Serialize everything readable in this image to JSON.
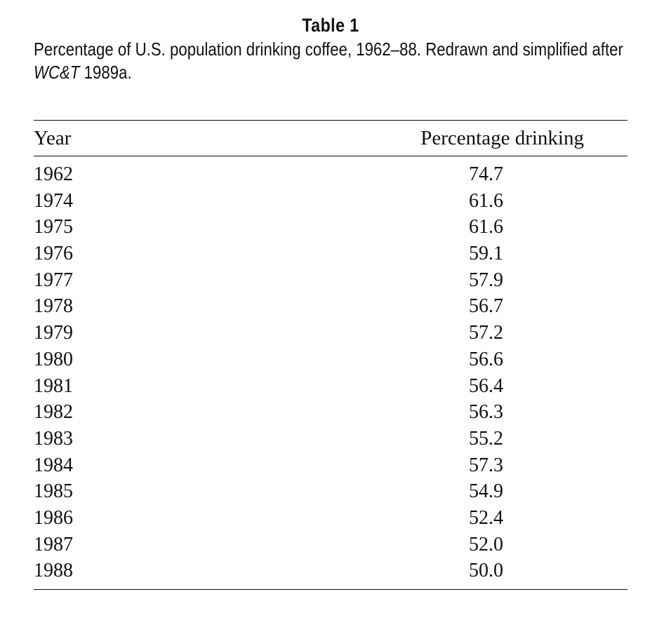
{
  "table_label": "Table 1",
  "caption": {
    "text_before": "Percentage of U.S. population drinking coffee, 1962–88. Redrawn and simplified after ",
    "source_italic": "WC&T",
    "text_after": " 1989a."
  },
  "columns": {
    "year": "Year",
    "percentage": "Percentage drinking"
  },
  "rows": [
    {
      "year": "1962",
      "pct": "74.7"
    },
    {
      "year": "1974",
      "pct": "61.6"
    },
    {
      "year": "1975",
      "pct": "61.6"
    },
    {
      "year": "1976",
      "pct": "59.1"
    },
    {
      "year": "1977",
      "pct": "57.9"
    },
    {
      "year": "1978",
      "pct": "56.7"
    },
    {
      "year": "1979",
      "pct": "57.2"
    },
    {
      "year": "1980",
      "pct": "56.6"
    },
    {
      "year": "1981",
      "pct": "56.4"
    },
    {
      "year": "1982",
      "pct": "56.3"
    },
    {
      "year": "1983",
      "pct": "55.2"
    },
    {
      "year": "1984",
      "pct": "57.3"
    },
    {
      "year": "1985",
      "pct": "54.9"
    },
    {
      "year": "1986",
      "pct": "52.4"
    },
    {
      "year": "1987",
      "pct": "52.0"
    },
    {
      "year": "1988",
      "pct": "50.0"
    }
  ]
}
